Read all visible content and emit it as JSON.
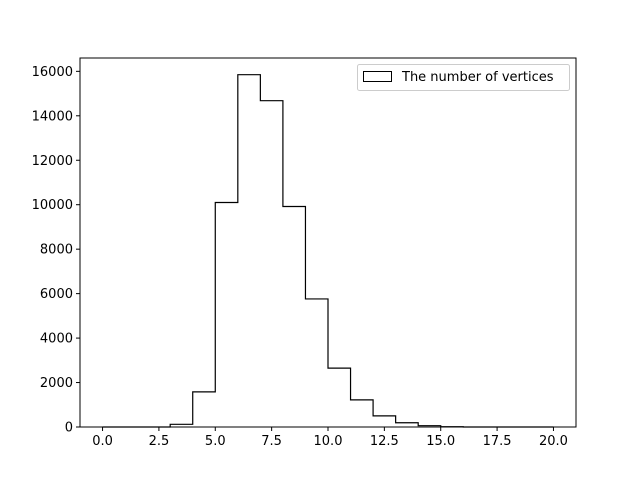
{
  "chart_data": {
    "type": "histogram",
    "bin_edges": [
      0,
      1,
      2,
      3,
      4,
      5,
      6,
      7,
      8,
      9,
      10,
      11,
      12,
      13,
      14,
      15,
      16,
      17,
      18,
      19,
      20
    ],
    "values": [
      0,
      0,
      0,
      120,
      1580,
      10100,
      15850,
      14680,
      9920,
      5760,
      2650,
      1220,
      500,
      190,
      60,
      10,
      0,
      0,
      0,
      0
    ],
    "xlim": [
      -1,
      21
    ],
    "ylim": [
      0,
      16600
    ],
    "x_ticks": [
      0.0,
      2.5,
      5.0,
      7.5,
      10.0,
      12.5,
      15.0,
      17.5,
      20.0
    ],
    "x_tick_labels": [
      "0.0",
      "2.5",
      "5.0",
      "7.5",
      "10.0",
      "12.5",
      "15.0",
      "17.5",
      "20.0"
    ],
    "y_ticks": [
      0,
      2000,
      4000,
      6000,
      8000,
      10000,
      12000,
      14000,
      16000
    ],
    "y_tick_labels": [
      "0",
      "2000",
      "4000",
      "6000",
      "8000",
      "10000",
      "12000",
      "14000",
      "16000"
    ],
    "legend": {
      "entries": [
        "The number of vertices"
      ],
      "placement": "upper-right"
    },
    "histtype": "step",
    "line_color": "#000000",
    "grid": false
  }
}
